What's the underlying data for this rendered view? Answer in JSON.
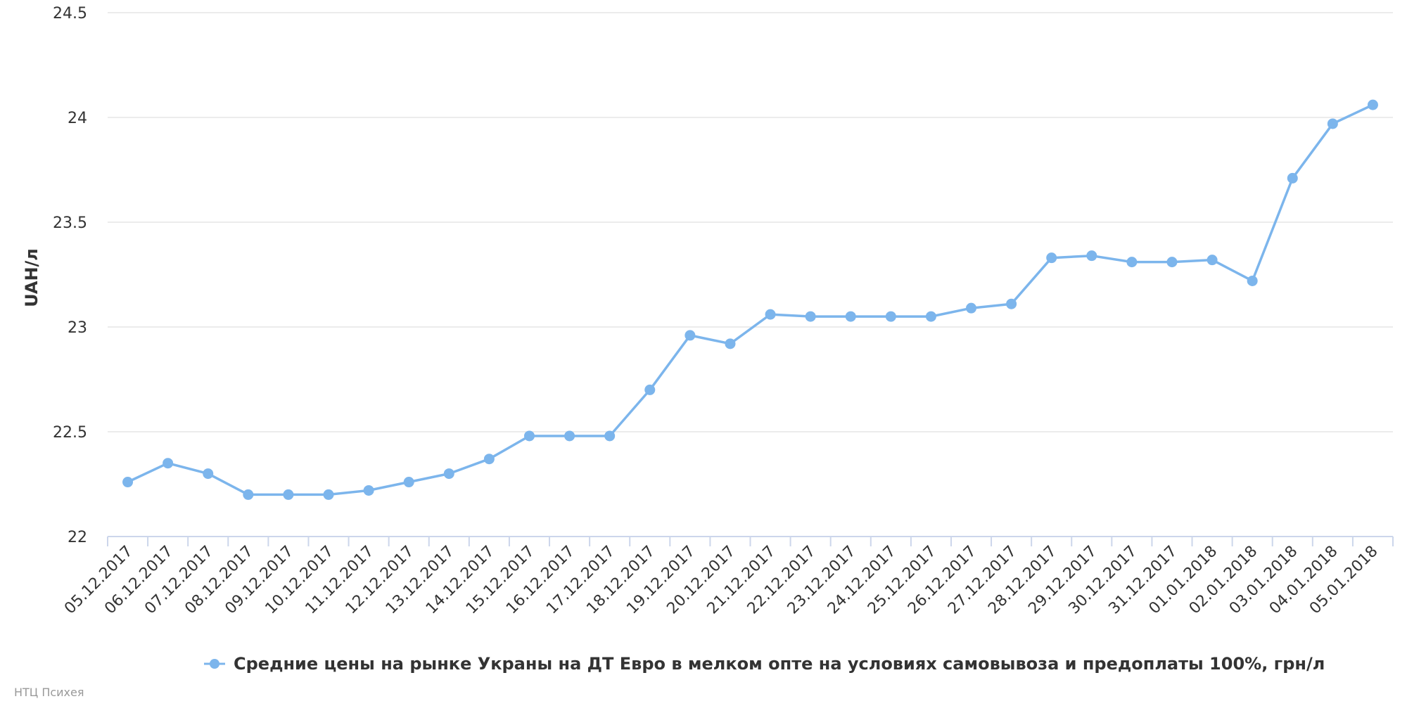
{
  "chart_data": {
    "type": "line",
    "title": "",
    "xlabel": "",
    "ylabel": "UAH/л",
    "ylim": [
      22,
      24.5
    ],
    "y_ticks": [
      "22",
      "22.5",
      "23",
      "23.5",
      "24",
      "24.5"
    ],
    "grid": true,
    "legend_position": "bottom-center",
    "categories": [
      "05.12.2017",
      "06.12.2017",
      "07.12.2017",
      "08.12.2017",
      "09.12.2017",
      "10.12.2017",
      "11.12.2017",
      "12.12.2017",
      "13.12.2017",
      "14.12.2017",
      "15.12.2017",
      "16.12.2017",
      "17.12.2017",
      "18.12.2017",
      "19.12.2017",
      "20.12.2017",
      "21.12.2017",
      "22.12.2017",
      "23.12.2017",
      "24.12.2017",
      "25.12.2017",
      "26.12.2017",
      "27.12.2017",
      "28.12.2017",
      "29.12.2017",
      "30.12.2017",
      "31.12.2017",
      "01.01.2018",
      "02.01.2018",
      "03.01.2018",
      "04.01.2018",
      "05.01.2018"
    ],
    "series": [
      {
        "name": "Средние цены на рынке Украны на ДТ Евро в мелком опте на условиях самовывоза и предоплаты 100%, грн/л",
        "color": "#7cb5ec",
        "values": [
          22.26,
          22.35,
          22.3,
          22.2,
          22.2,
          22.2,
          22.22,
          22.26,
          22.3,
          22.37,
          22.48,
          22.48,
          22.48,
          22.7,
          22.96,
          22.92,
          23.06,
          23.05,
          23.05,
          23.05,
          23.05,
          23.09,
          23.11,
          23.33,
          23.34,
          23.31,
          23.31,
          23.32,
          23.22,
          23.71,
          23.97,
          24.06
        ]
      }
    ]
  },
  "credit": "НТЦ Психея"
}
